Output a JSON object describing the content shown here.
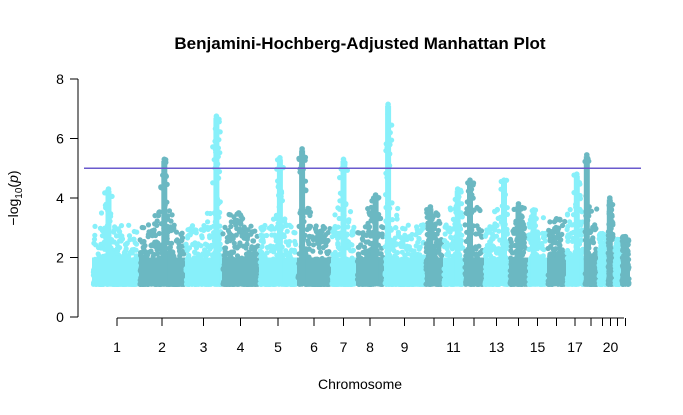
{
  "chart_data": {
    "type": "scatter",
    "title": "Benjamini-Hochberg-Adjusted Manhattan Plot",
    "xlabel": "Chromosome",
    "ylabel": "−log10(p)",
    "ylim": [
      0,
      8
    ],
    "y_ticks": [
      0,
      2,
      4,
      6,
      8
    ],
    "x_tick_labels": [
      "1",
      "2",
      "3",
      "4",
      "5",
      "6",
      "7",
      "8",
      "9",
      "11",
      "13",
      "15",
      "17",
      "20"
    ],
    "threshold": 5,
    "colors": {
      "light": "#87F0FA",
      "dark": "#6BB8C2",
      "threshold": "#6A5ACD"
    },
    "grid": false,
    "legend": "none",
    "chromosomes": [
      {
        "chr": 1,
        "peak": 4.3,
        "color": "light"
      },
      {
        "chr": 2,
        "peak": 5.3,
        "color": "dark"
      },
      {
        "chr": 3,
        "peak": 6.75,
        "color": "light"
      },
      {
        "chr": 4,
        "peak": 3.5,
        "color": "dark"
      },
      {
        "chr": 5,
        "peak": 5.35,
        "color": "light"
      },
      {
        "chr": 6,
        "peak": 5.65,
        "color": "dark"
      },
      {
        "chr": 7,
        "peak": 5.3,
        "color": "light"
      },
      {
        "chr": 8,
        "peak": 4.1,
        "color": "dark"
      },
      {
        "chr": 9,
        "peak": 7.15,
        "color": "light"
      },
      {
        "chr": 10,
        "peak": 3.7,
        "color": "dark"
      },
      {
        "chr": 11,
        "peak": 4.3,
        "color": "light"
      },
      {
        "chr": 12,
        "peak": 4.6,
        "color": "dark"
      },
      {
        "chr": 13,
        "peak": 4.6,
        "color": "light"
      },
      {
        "chr": 14,
        "peak": 3.8,
        "color": "dark"
      },
      {
        "chr": 15,
        "peak": 3.6,
        "color": "light"
      },
      {
        "chr": 16,
        "peak": 3.3,
        "color": "dark"
      },
      {
        "chr": 17,
        "peak": 4.8,
        "color": "light"
      },
      {
        "chr": 18,
        "peak": 5.45,
        "color": "dark"
      },
      {
        "chr": 19,
        "peak": 2.8,
        "color": "light"
      },
      {
        "chr": 20,
        "peak": 4.0,
        "color": "dark"
      },
      {
        "chr": 21,
        "peak": 2.6,
        "color": "light"
      },
      {
        "chr": 22,
        "peak": 2.7,
        "color": "dark"
      }
    ]
  }
}
